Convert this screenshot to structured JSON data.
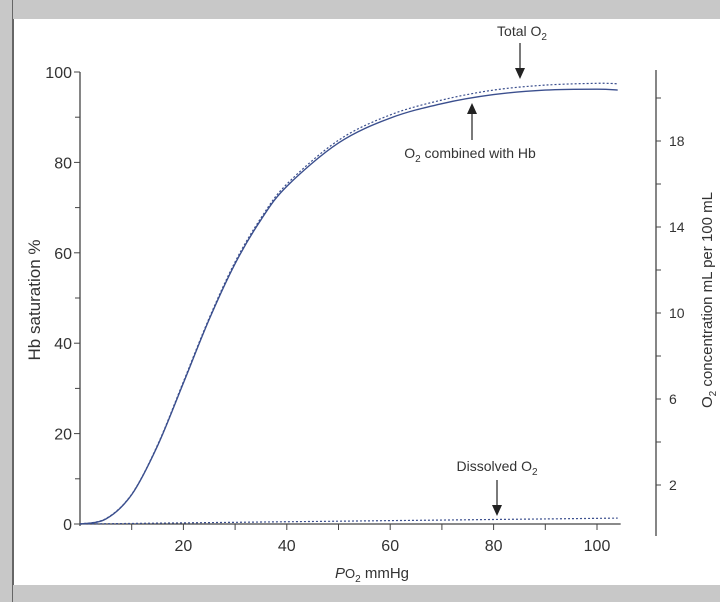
{
  "chart_data": {
    "type": "line",
    "title": "",
    "xlabel_prefix": "P",
    "xlabel_main": "O",
    "xlabel_sub": "2",
    "xlabel_suffix": " mmHg",
    "ylabel": "Hb saturation %",
    "y2label_main": "O",
    "y2label_sub": "2",
    "y2label_suffix": " concentration mL per 100 mL",
    "xlim": [
      0,
      104
    ],
    "ylim": [
      0,
      100
    ],
    "y2lim": [
      0,
      21.2
    ],
    "xticks": [
      20,
      40,
      60,
      80,
      100
    ],
    "xminor": [
      10,
      30,
      50,
      70,
      90
    ],
    "yticks": [
      0,
      20,
      40,
      60,
      80,
      100
    ],
    "yminor": [
      10,
      30,
      50,
      70,
      90
    ],
    "y2ticks": [
      2,
      6,
      10,
      14,
      18
    ],
    "y2minor": [
      4,
      8,
      12,
      16,
      20
    ],
    "grid": false,
    "x": [
      0,
      5,
      10,
      15,
      20,
      25,
      30,
      35,
      40,
      50,
      60,
      70,
      80,
      90,
      100,
      104
    ],
    "series": [
      {
        "name": "O2 combined with Hb",
        "style": "solid",
        "color": "#3b4f8e",
        "values": [
          0,
          1.1,
          6.5,
          17.3,
          31.2,
          45.3,
          57.6,
          67.3,
          74.7,
          84.3,
          89.8,
          93.0,
          95.0,
          96.0,
          96.2,
          96.0
        ]
      },
      {
        "name": "Total O2",
        "style": "dotted",
        "color": "#3b4f8e",
        "values": [
          0,
          1.2,
          6.6,
          17.5,
          31.5,
          45.6,
          58.0,
          67.7,
          75.2,
          84.9,
          90.5,
          93.8,
          96.0,
          97.1,
          97.5,
          97.4
        ]
      },
      {
        "name": "Dissolved O2",
        "style": "dotted",
        "color": "#3b4f8e",
        "values": [
          0,
          0.06,
          0.12,
          0.19,
          0.25,
          0.31,
          0.37,
          0.44,
          0.5,
          0.62,
          0.75,
          0.87,
          1.0,
          1.12,
          1.25,
          1.3
        ]
      }
    ],
    "annotations": {
      "total": {
        "main": "Total O",
        "sub": "2"
      },
      "combined": {
        "main": "O",
        "sub": "2",
        "rest": " combined with Hb"
      },
      "dissolved": {
        "main": "Dissolved O",
        "sub": "2"
      }
    }
  }
}
